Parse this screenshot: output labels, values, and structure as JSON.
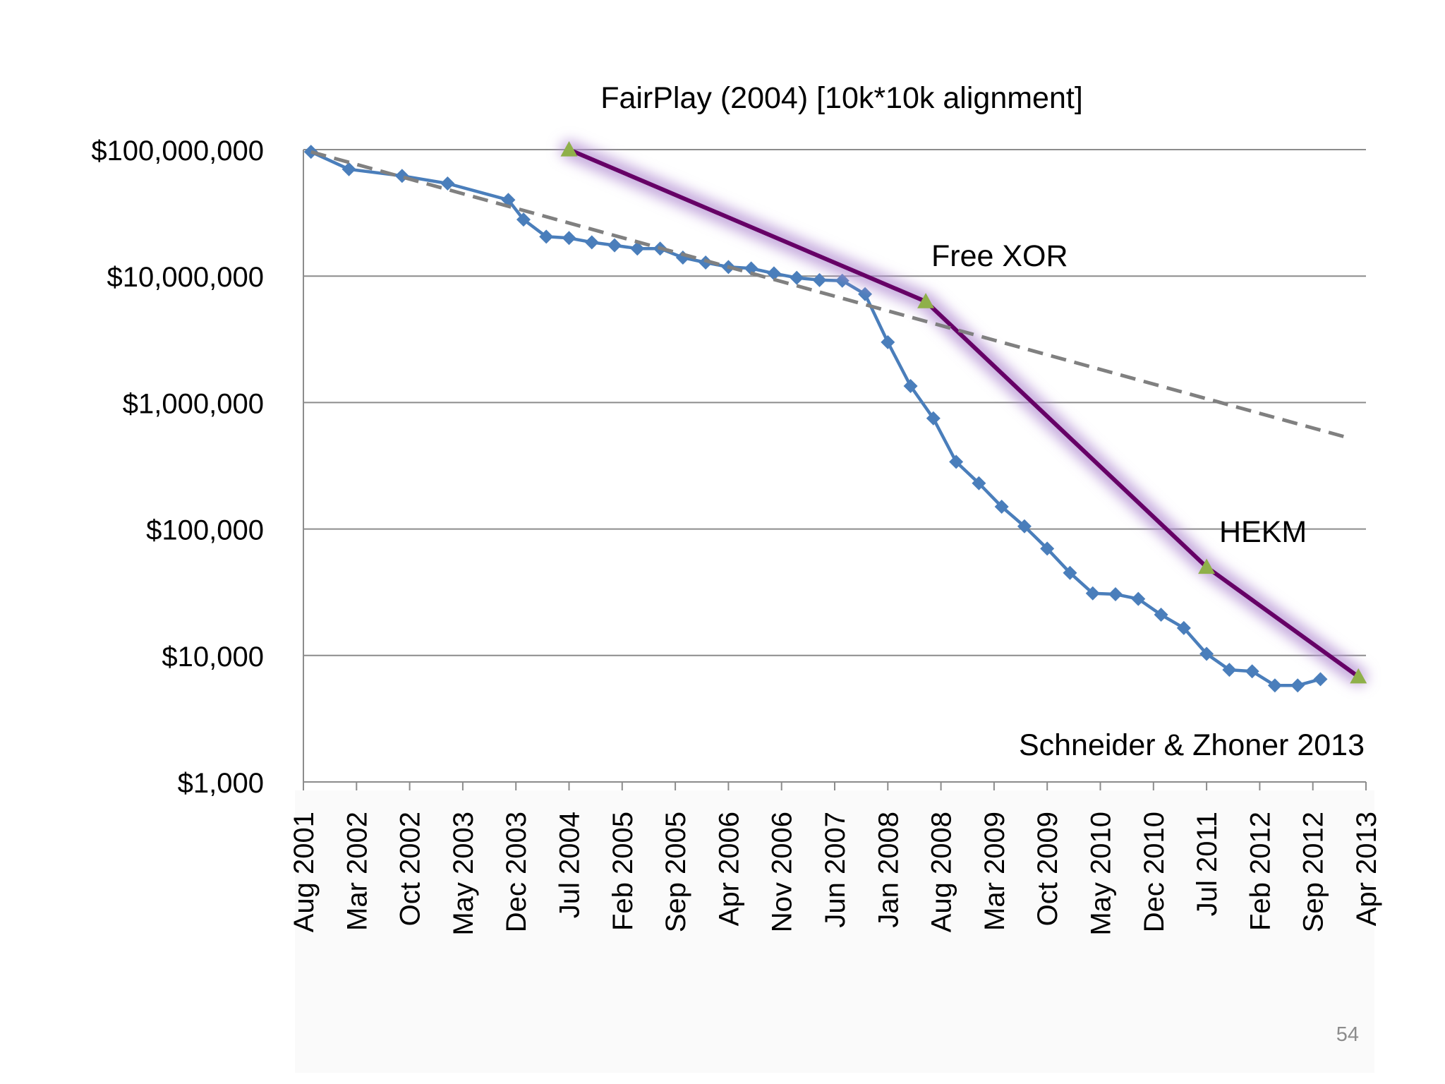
{
  "slide_number": "54",
  "chart_data": {
    "type": "line",
    "y_scale": "log",
    "ylim": [
      1000,
      100000000
    ],
    "y_ticks": [
      {
        "value": 100000000,
        "label": "$100,000,000"
      },
      {
        "value": 10000000,
        "label": "$10,000,000"
      },
      {
        "value": 1000000,
        "label": "$1,000,000"
      },
      {
        "value": 100000,
        "label": "$100,000"
      },
      {
        "value": 10000,
        "label": "$10,000"
      },
      {
        "value": 1000,
        "label": "$1,000"
      }
    ],
    "xlim": [
      "2001-08",
      "2013-04"
    ],
    "x_ticks": [
      "Aug 2001",
      "Mar 2002",
      "Oct 2002",
      "May 2003",
      "Dec 2003",
      "Jul 2004",
      "Feb 2005",
      "Sep 2005",
      "Apr 2006",
      "Nov 2006",
      "Jun 2007",
      "Jan 2008",
      "Aug 2008",
      "Mar 2009",
      "Oct 2009",
      "May 2010",
      "Dec 2010",
      "Jul 2011",
      "Feb 2012",
      "Sep 2012",
      "Apr 2013"
    ],
    "grid": "horizontal",
    "series": [
      {
        "color": "#4a7ebb",
        "marker": "diamond",
        "points": [
          [
            "2001-09",
            96000000
          ],
          [
            "2002-02",
            70000000
          ],
          [
            "2002-09",
            62000000
          ],
          [
            "2003-03",
            54000000
          ],
          [
            "2003-11",
            40000000
          ],
          [
            "2004-01",
            28000000
          ],
          [
            "2004-04",
            20500000
          ],
          [
            "2004-07",
            20000000
          ],
          [
            "2004-10",
            18500000
          ],
          [
            "2005-01",
            17500000
          ],
          [
            "2005-04",
            16500000
          ],
          [
            "2005-07",
            16500000
          ],
          [
            "2005-10",
            14000000
          ],
          [
            "2006-01",
            12800000
          ],
          [
            "2006-04",
            11800000
          ],
          [
            "2006-07",
            11500000
          ],
          [
            "2006-10",
            10500000
          ],
          [
            "2007-01",
            9700000
          ],
          [
            "2007-04",
            9300000
          ],
          [
            "2007-07",
            9200000
          ],
          [
            "2007-10",
            7200000
          ],
          [
            "2008-01",
            3000000
          ],
          [
            "2008-04",
            1350000
          ],
          [
            "2008-07",
            750000
          ],
          [
            "2008-10",
            340000
          ],
          [
            "2009-01",
            230000
          ],
          [
            "2009-04",
            150000
          ],
          [
            "2009-07",
            105000
          ],
          [
            "2009-10",
            70000
          ],
          [
            "2010-01",
            45000
          ],
          [
            "2010-04",
            31000
          ],
          [
            "2010-07",
            30500
          ],
          [
            "2010-10",
            28000
          ],
          [
            "2011-01",
            21000
          ],
          [
            "2011-04",
            16500
          ],
          [
            "2011-07",
            10300
          ],
          [
            "2011-10",
            7700
          ],
          [
            "2012-01",
            7500
          ],
          [
            "2012-04",
            5800
          ],
          [
            "2012-07",
            5800
          ],
          [
            "2012-10",
            6500
          ]
        ]
      },
      {
        "color": "#660066",
        "marker": "triangle",
        "marker_color": "#8fb04a",
        "glow": true,
        "points": [
          [
            "2004-07",
            100000000
          ],
          [
            "2008-06",
            6300000
          ],
          [
            "2011-07",
            50000
          ],
          [
            "2013-03",
            6800
          ]
        ]
      },
      {
        "color": "#808080",
        "dashed": true,
        "trend": true,
        "points": [
          [
            "2001-09",
            96000000
          ],
          [
            "2013-02",
            520000
          ]
        ]
      }
    ],
    "annotations": [
      {
        "text": "FairPlay (2004) [10k*10k alignment]"
      },
      {
        "text": "Free XOR"
      },
      {
        "text": "HEKM"
      },
      {
        "text": "Schneider & Zhoner 2013"
      }
    ]
  }
}
